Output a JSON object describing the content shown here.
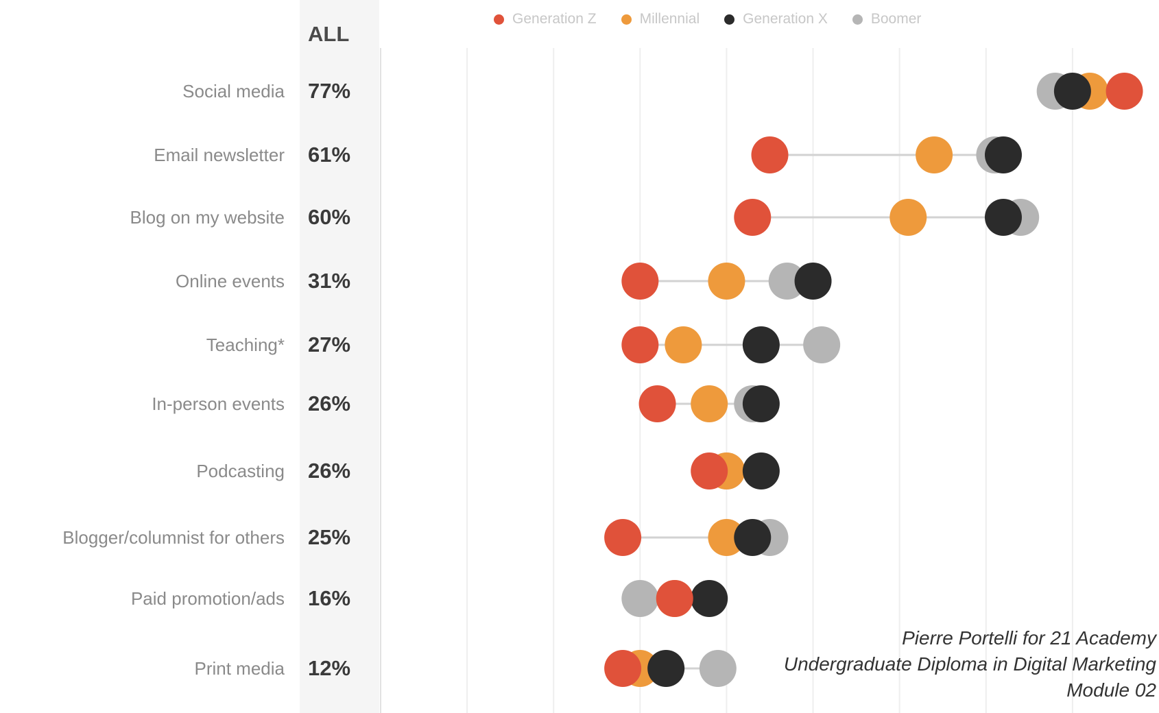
{
  "chart_data": {
    "type": "dumbbell",
    "header": "ALL",
    "series": [
      {
        "name": "Generation Z",
        "color": "#e0523a"
      },
      {
        "name": "Millennial",
        "color": "#ee9a3c"
      },
      {
        "name": "Generation X",
        "color": "#2b2b2b"
      },
      {
        "name": "Boomer",
        "color": "#b5b5b5"
      }
    ],
    "xlim": [
      0,
      90
    ],
    "grid": true,
    "rows": [
      {
        "label": "Social media",
        "all": "77%",
        "values": [
          86,
          82,
          80,
          78
        ]
      },
      {
        "label": "Email newsletter",
        "all": "61%",
        "values": [
          45,
          64,
          72,
          71
        ]
      },
      {
        "label": "Blog on my website",
        "all": "60%",
        "values": [
          43,
          61,
          72,
          74
        ]
      },
      {
        "label": "Online events",
        "all": "31%",
        "values": [
          30,
          40,
          50,
          47
        ]
      },
      {
        "label": "Teaching*",
        "all": "27%",
        "values": [
          30,
          35,
          44,
          51
        ]
      },
      {
        "label": "In-person events",
        "all": "26%",
        "values": [
          32,
          38,
          44,
          43
        ]
      },
      {
        "label": "Podcasting",
        "all": "26%",
        "values": [
          38,
          40,
          44,
          40
        ]
      },
      {
        "label": "Blogger/columnist for others",
        "all": "25%",
        "values": [
          28,
          40,
          43,
          45
        ]
      },
      {
        "label": "Paid promotion/ads",
        "all": "16%",
        "values": [
          34,
          34,
          38,
          30
        ]
      },
      {
        "label": "Print media",
        "all": "12%",
        "values": [
          28,
          30,
          33,
          39
        ]
      }
    ]
  },
  "credits": {
    "line1": "Pierre Portelli for 21 Academy",
    "line2": "Undergraduate Diploma in Digital Marketing",
    "line3": "Module 02"
  }
}
